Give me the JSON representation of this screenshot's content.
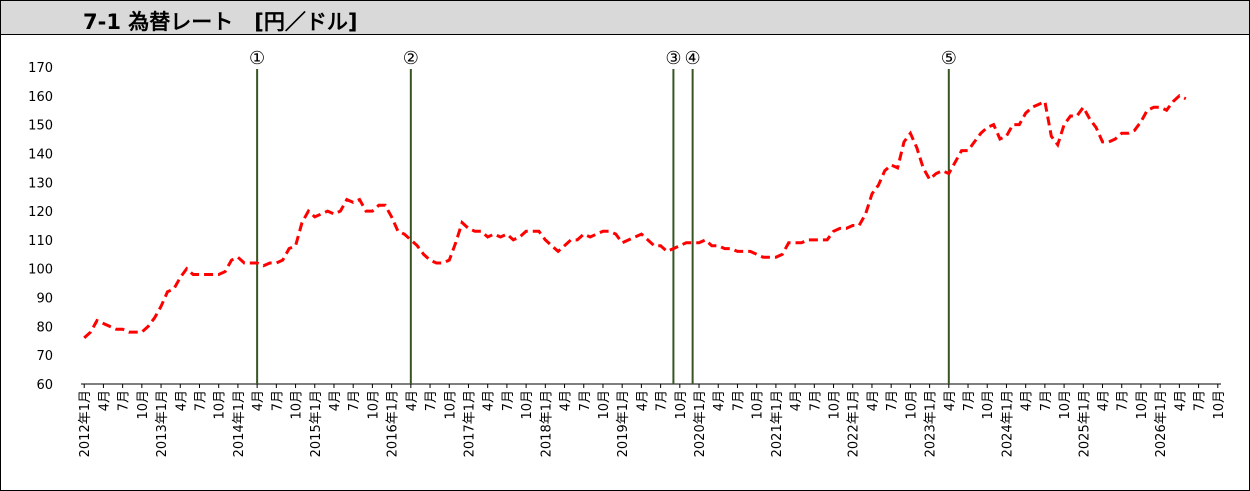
{
  "chart_data": {
    "type": "line",
    "title": "7-1 為替レート　[円／ドル]",
    "categories": [
      "2012年1月",
      null,
      null,
      "4月",
      null,
      null,
      "7月",
      null,
      null,
      "10月",
      null,
      null,
      "2013年1月",
      null,
      null,
      "4月",
      null,
      null,
      "7月",
      null,
      null,
      "10月",
      null,
      null,
      "2014年1月",
      null,
      null,
      "4月",
      null,
      null,
      "7月",
      null,
      null,
      "10月",
      null,
      null,
      "2015年1月",
      null,
      null,
      "4月",
      null,
      null,
      "7月",
      null,
      null,
      "10月",
      null,
      null,
      "2016年1月",
      null,
      null,
      "4月",
      null,
      null,
      "7月",
      null,
      null,
      "10月",
      null,
      null,
      "2017年1月",
      null,
      null,
      "4月",
      null,
      null,
      "7月",
      null,
      null,
      "10月",
      null,
      null,
      "2018年1月",
      null,
      null,
      "4月",
      null,
      null,
      "7月",
      null,
      null,
      "10月",
      null,
      null,
      "2019年1月",
      null,
      null,
      "4月",
      null,
      null,
      "7月",
      null,
      null,
      "10月",
      null,
      null,
      "2020年1月",
      null,
      null,
      "4月",
      null,
      null,
      "7月",
      null,
      null,
      "10月",
      null,
      null,
      "2021年1月",
      null,
      null,
      "4月",
      null,
      null,
      "7月",
      null,
      null,
      "10月",
      null,
      null,
      "2022年1月",
      null,
      null,
      "4月",
      null,
      null,
      "7月",
      null,
      null,
      "10月",
      null,
      null,
      "2023年1月",
      null,
      null,
      "4月",
      null,
      null,
      "7月",
      null,
      null,
      "10月",
      null,
      null,
      "2024年1月",
      null,
      null,
      "4月",
      null,
      null,
      "7月",
      null,
      null,
      "10月",
      null,
      null,
      "2025年1月",
      null,
      null,
      "4月",
      null,
      null,
      "7月",
      null,
      null,
      "10月",
      null,
      null,
      "2026年1月",
      null,
      null,
      "4月",
      null,
      null,
      "7月",
      null,
      null,
      "10月"
    ],
    "values": [
      76,
      78,
      82,
      81,
      80,
      79,
      79,
      78,
      78,
      78,
      80,
      83,
      87,
      92,
      93,
      97,
      100,
      98,
      98,
      98,
      98,
      98,
      99,
      103,
      104,
      102,
      102,
      102,
      101,
      102,
      102,
      103,
      107,
      108,
      116,
      120,
      118,
      119,
      120,
      119,
      120,
      124,
      123,
      124,
      120,
      120,
      122,
      122,
      118,
      113,
      112,
      110,
      108,
      105,
      103,
      102,
      102,
      103,
      109,
      116,
      114,
      113,
      113,
      111,
      112,
      111,
      112,
      110,
      111,
      113,
      113,
      113,
      110,
      108,
      106,
      108,
      110,
      110,
      112,
      111,
      112,
      113,
      113,
      112,
      109,
      110,
      111,
      112,
      110,
      108,
      108,
      106,
      107,
      108,
      109,
      109,
      109,
      110,
      108,
      108,
      107,
      107,
      106,
      106,
      106,
      105,
      104,
      104,
      104,
      105,
      109,
      109,
      109,
      110,
      110,
      110,
      110,
      113,
      114,
      114,
      115,
      115,
      119,
      126,
      129,
      134,
      136,
      135,
      144,
      147,
      142,
      135,
      131,
      133,
      134,
      133,
      137,
      141,
      141,
      144,
      147,
      149,
      150,
      145,
      146,
      150,
      150,
      154,
      156,
      157,
      158,
      146,
      143,
      150,
      153,
      153,
      156,
      152,
      149,
      144,
      144,
      145,
      147,
      147,
      148,
      151,
      155,
      156,
      156,
      155,
      158,
      160,
      159,
      null,
      null,
      null,
      null,
      null
    ],
    "color": "#ff0000",
    "ylim": [
      60,
      170
    ],
    "yticks": [
      60,
      70,
      80,
      90,
      100,
      110,
      120,
      130,
      140,
      150,
      160,
      170
    ],
    "grid": false,
    "annotations": [
      {
        "label": "①",
        "index": 27
      },
      {
        "label": "②",
        "index": 51
      },
      {
        "label": "③",
        "index": 92
      },
      {
        "label": "④",
        "index": 95
      },
      {
        "label": "⑤",
        "index": 135
      }
    ],
    "annotation_color": "#375623"
  }
}
